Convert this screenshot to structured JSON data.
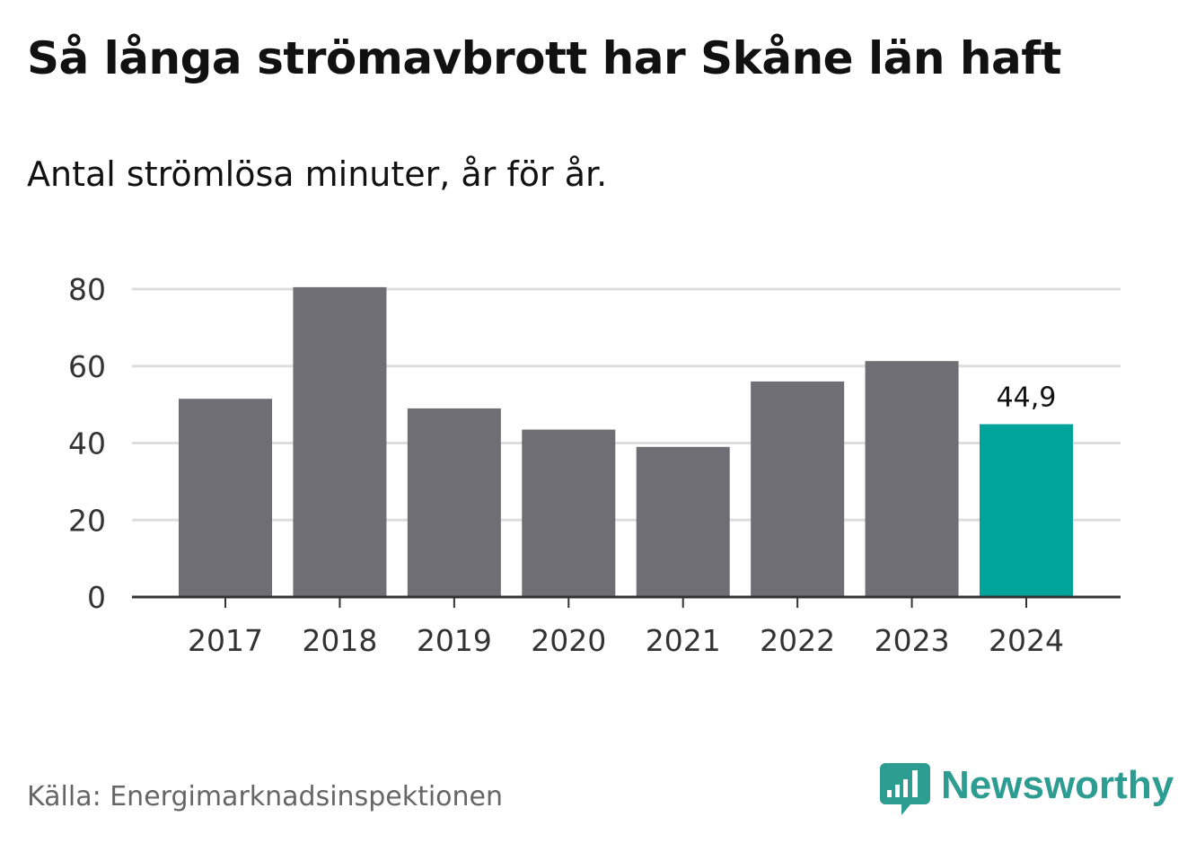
{
  "chart_data": {
    "type": "bar",
    "title": "Så långa strömavbrott har Skåne län haft",
    "subtitle": "Antal strömlösa minuter, år för år.",
    "categories": [
      "2017",
      "2018",
      "2019",
      "2020",
      "2021",
      "2022",
      "2023",
      "2024"
    ],
    "values": [
      51.5,
      80.5,
      49,
      43.5,
      39,
      56,
      61.3,
      44.9
    ],
    "highlight_index": 7,
    "annotation": "44,9",
    "ylim": [
      0,
      80
    ],
    "yticks": [
      "0",
      "20",
      "40",
      "60",
      "80"
    ],
    "grid": true,
    "xlabel": "",
    "ylabel": "",
    "colors": {
      "bar": "#6f6e75",
      "highlight": "#00a49a",
      "grid": "#dddddd",
      "axis": "#333333"
    }
  },
  "source": "Källa: Energimarknadsinspektionen",
  "brand": {
    "name": "Newsworthy",
    "icon": "newsworthy-logo-icon",
    "color": "#2d9c91"
  }
}
